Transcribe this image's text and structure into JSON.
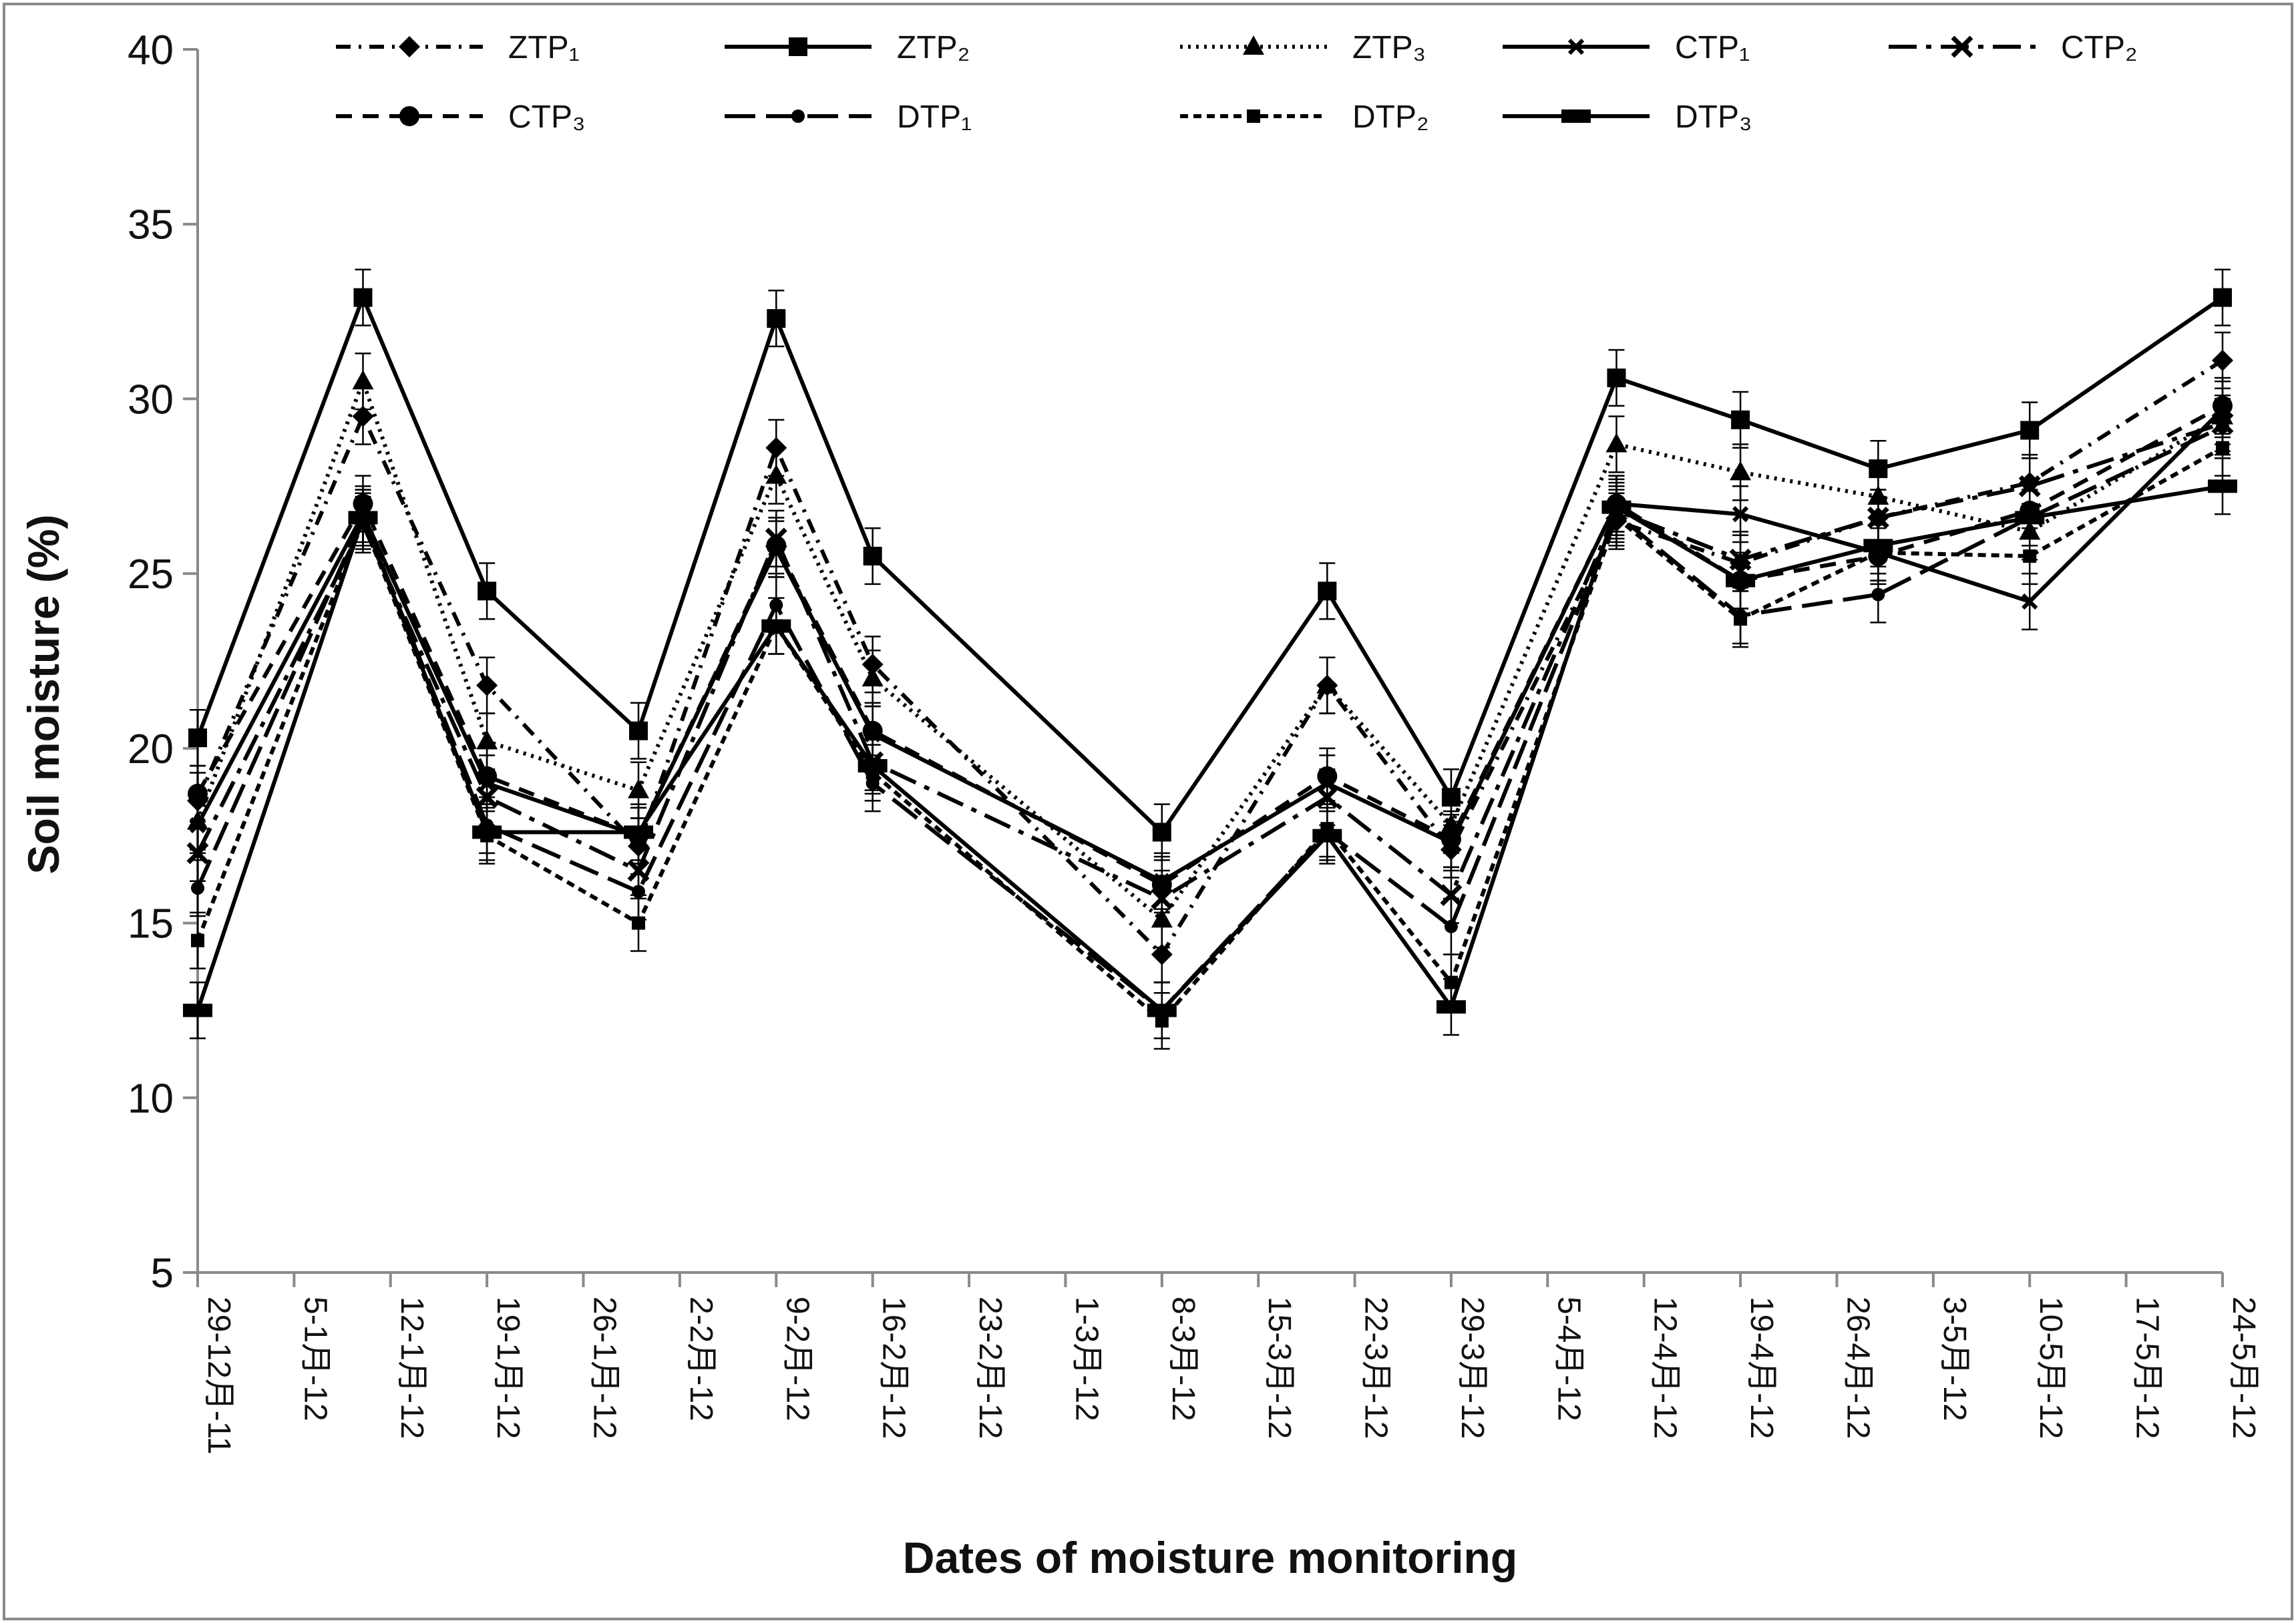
{
  "chart_data": {
    "type": "line",
    "title": "",
    "xlabel": "Dates of moisture monitoring",
    "ylabel": "Soil moisture (%)",
    "ylim": [
      5,
      40
    ],
    "yticks": [
      5,
      10,
      15,
      20,
      25,
      30,
      35,
      40
    ],
    "x_start": "2011-12-29",
    "x_end": "2012-05-24",
    "xtick_labels": [
      "29-12月-11",
      "5-1月-12",
      "12-1月-12",
      "19-1月-12",
      "26-1月-12",
      "2-2月-12",
      "9-2月-12",
      "16-2月-12",
      "23-2月-12",
      "1-3月-12",
      "8-3月-12",
      "15-3月-12",
      "22-3月-12",
      "29-3月-12",
      "5-4月-12",
      "12-4月-12",
      "19-4月-12",
      "26-4月-12",
      "3-5月-12",
      "10-5月-12",
      "17-5月-12",
      "24-5月-12"
    ],
    "x": [
      "2011-12-29",
      "2012-01-10",
      "2012-01-19",
      "2012-01-30",
      "2012-02-09",
      "2012-02-16",
      "2012-03-08",
      "2012-03-20",
      "2012-03-29",
      "2012-04-10",
      "2012-04-19",
      "2012-04-29",
      "2012-05-10",
      "2012-05-24"
    ],
    "error_bar": 0.8,
    "series": [
      {
        "name": "ZTP₁",
        "dash": "22 12 4 12",
        "marker": "diamond",
        "values": [
          18.5,
          29.5,
          21.8,
          17.2,
          28.6,
          22.4,
          14.1,
          21.8,
          17.1,
          26.5,
          25.3,
          26.6,
          27.6,
          31.1
        ]
      },
      {
        "name": "ZTP₂",
        "dash": "",
        "marker": "square",
        "values": [
          20.3,
          32.9,
          24.5,
          20.5,
          32.3,
          25.5,
          17.6,
          24.5,
          18.6,
          30.6,
          29.4,
          28.0,
          29.1,
          32.9
        ]
      },
      {
        "name": "ZTP₃",
        "dash": "4 8",
        "marker": "triangle",
        "values": [
          17.9,
          30.5,
          20.2,
          18.8,
          27.8,
          22.0,
          15.1,
          21.8,
          17.8,
          28.7,
          27.9,
          27.2,
          26.2,
          29.5
        ]
      },
      {
        "name": "CTP₁",
        "dash": "",
        "marker": "x-small",
        "values": [
          17.8,
          26.7,
          19.0,
          17.5,
          25.7,
          20.4,
          16.2,
          19.0,
          17.3,
          27.0,
          26.7,
          25.6,
          24.2,
          29.7
        ]
      },
      {
        "name": "CTP₂",
        "dash": "42 14 8 14",
        "marker": "x",
        "values": [
          17.0,
          26.4,
          18.6,
          16.5,
          26.0,
          19.6,
          15.7,
          18.6,
          15.8,
          26.8,
          25.4,
          26.6,
          27.5,
          29.3
        ]
      },
      {
        "name": "CTP₃",
        "dash": "24 16",
        "marker": "circle",
        "values": [
          18.7,
          27.0,
          19.2,
          17.5,
          25.8,
          20.5,
          16.1,
          19.2,
          17.4,
          27.0,
          24.8,
          25.5,
          26.8,
          29.8
        ]
      },
      {
        "name": "DTP₁",
        "dash": "46 16",
        "marker": "circle-small",
        "values": [
          16.0,
          26.6,
          17.8,
          15.9,
          24.1,
          19.0,
          12.5,
          17.6,
          14.9,
          26.7,
          23.8,
          24.4,
          26.6,
          29.2
        ]
      },
      {
        "name": "DTP₂",
        "dash": "12 8",
        "marker": "square-small",
        "values": [
          14.5,
          26.5,
          17.5,
          15.0,
          23.5,
          19.3,
          12.2,
          17.7,
          13.3,
          26.6,
          23.7,
          25.6,
          25.5,
          28.6
        ]
      },
      {
        "name": "DTP₃",
        "dash": "",
        "marker": "rect",
        "values": [
          12.5,
          26.6,
          17.6,
          17.6,
          23.5,
          19.5,
          12.5,
          17.5,
          12.6,
          26.9,
          24.8,
          25.8,
          26.6,
          27.5
        ]
      }
    ]
  }
}
